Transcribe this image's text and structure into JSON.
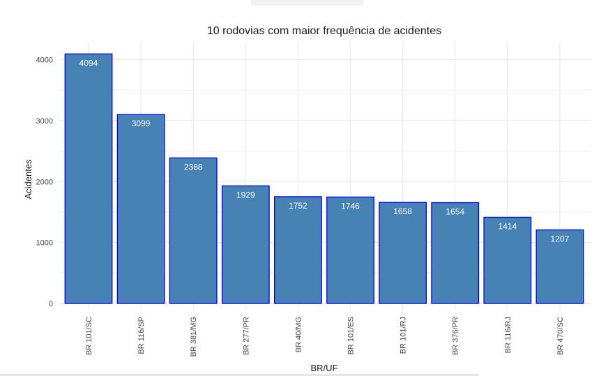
{
  "chart_data": {
    "type": "bar",
    "title": "10 rodovias com maior frequência de acidentes",
    "xlabel": "BR/UF",
    "ylabel": "Acidentes",
    "categories": [
      "BR 101/SC",
      "BR 116/SP",
      "BR 381/MG",
      "BR 277/PR",
      "BR 40/MG",
      "BR 101/ES",
      "BR 101/RJ",
      "BR 376/PR",
      "BR 116/RJ",
      "BR 470/SC"
    ],
    "values": [
      4094,
      3099,
      2388,
      1929,
      1752,
      1746,
      1658,
      1654,
      1414,
      1207
    ],
    "ylim": [
      0,
      4300
    ],
    "yticks": [
      0,
      1000,
      2000,
      3000,
      4000
    ],
    "grid": true,
    "colors": {
      "bar_fill": "#4682B4",
      "bar_border": "#0000FF",
      "grid": "#EBEBEB",
      "label": "#FFFFFF"
    }
  }
}
